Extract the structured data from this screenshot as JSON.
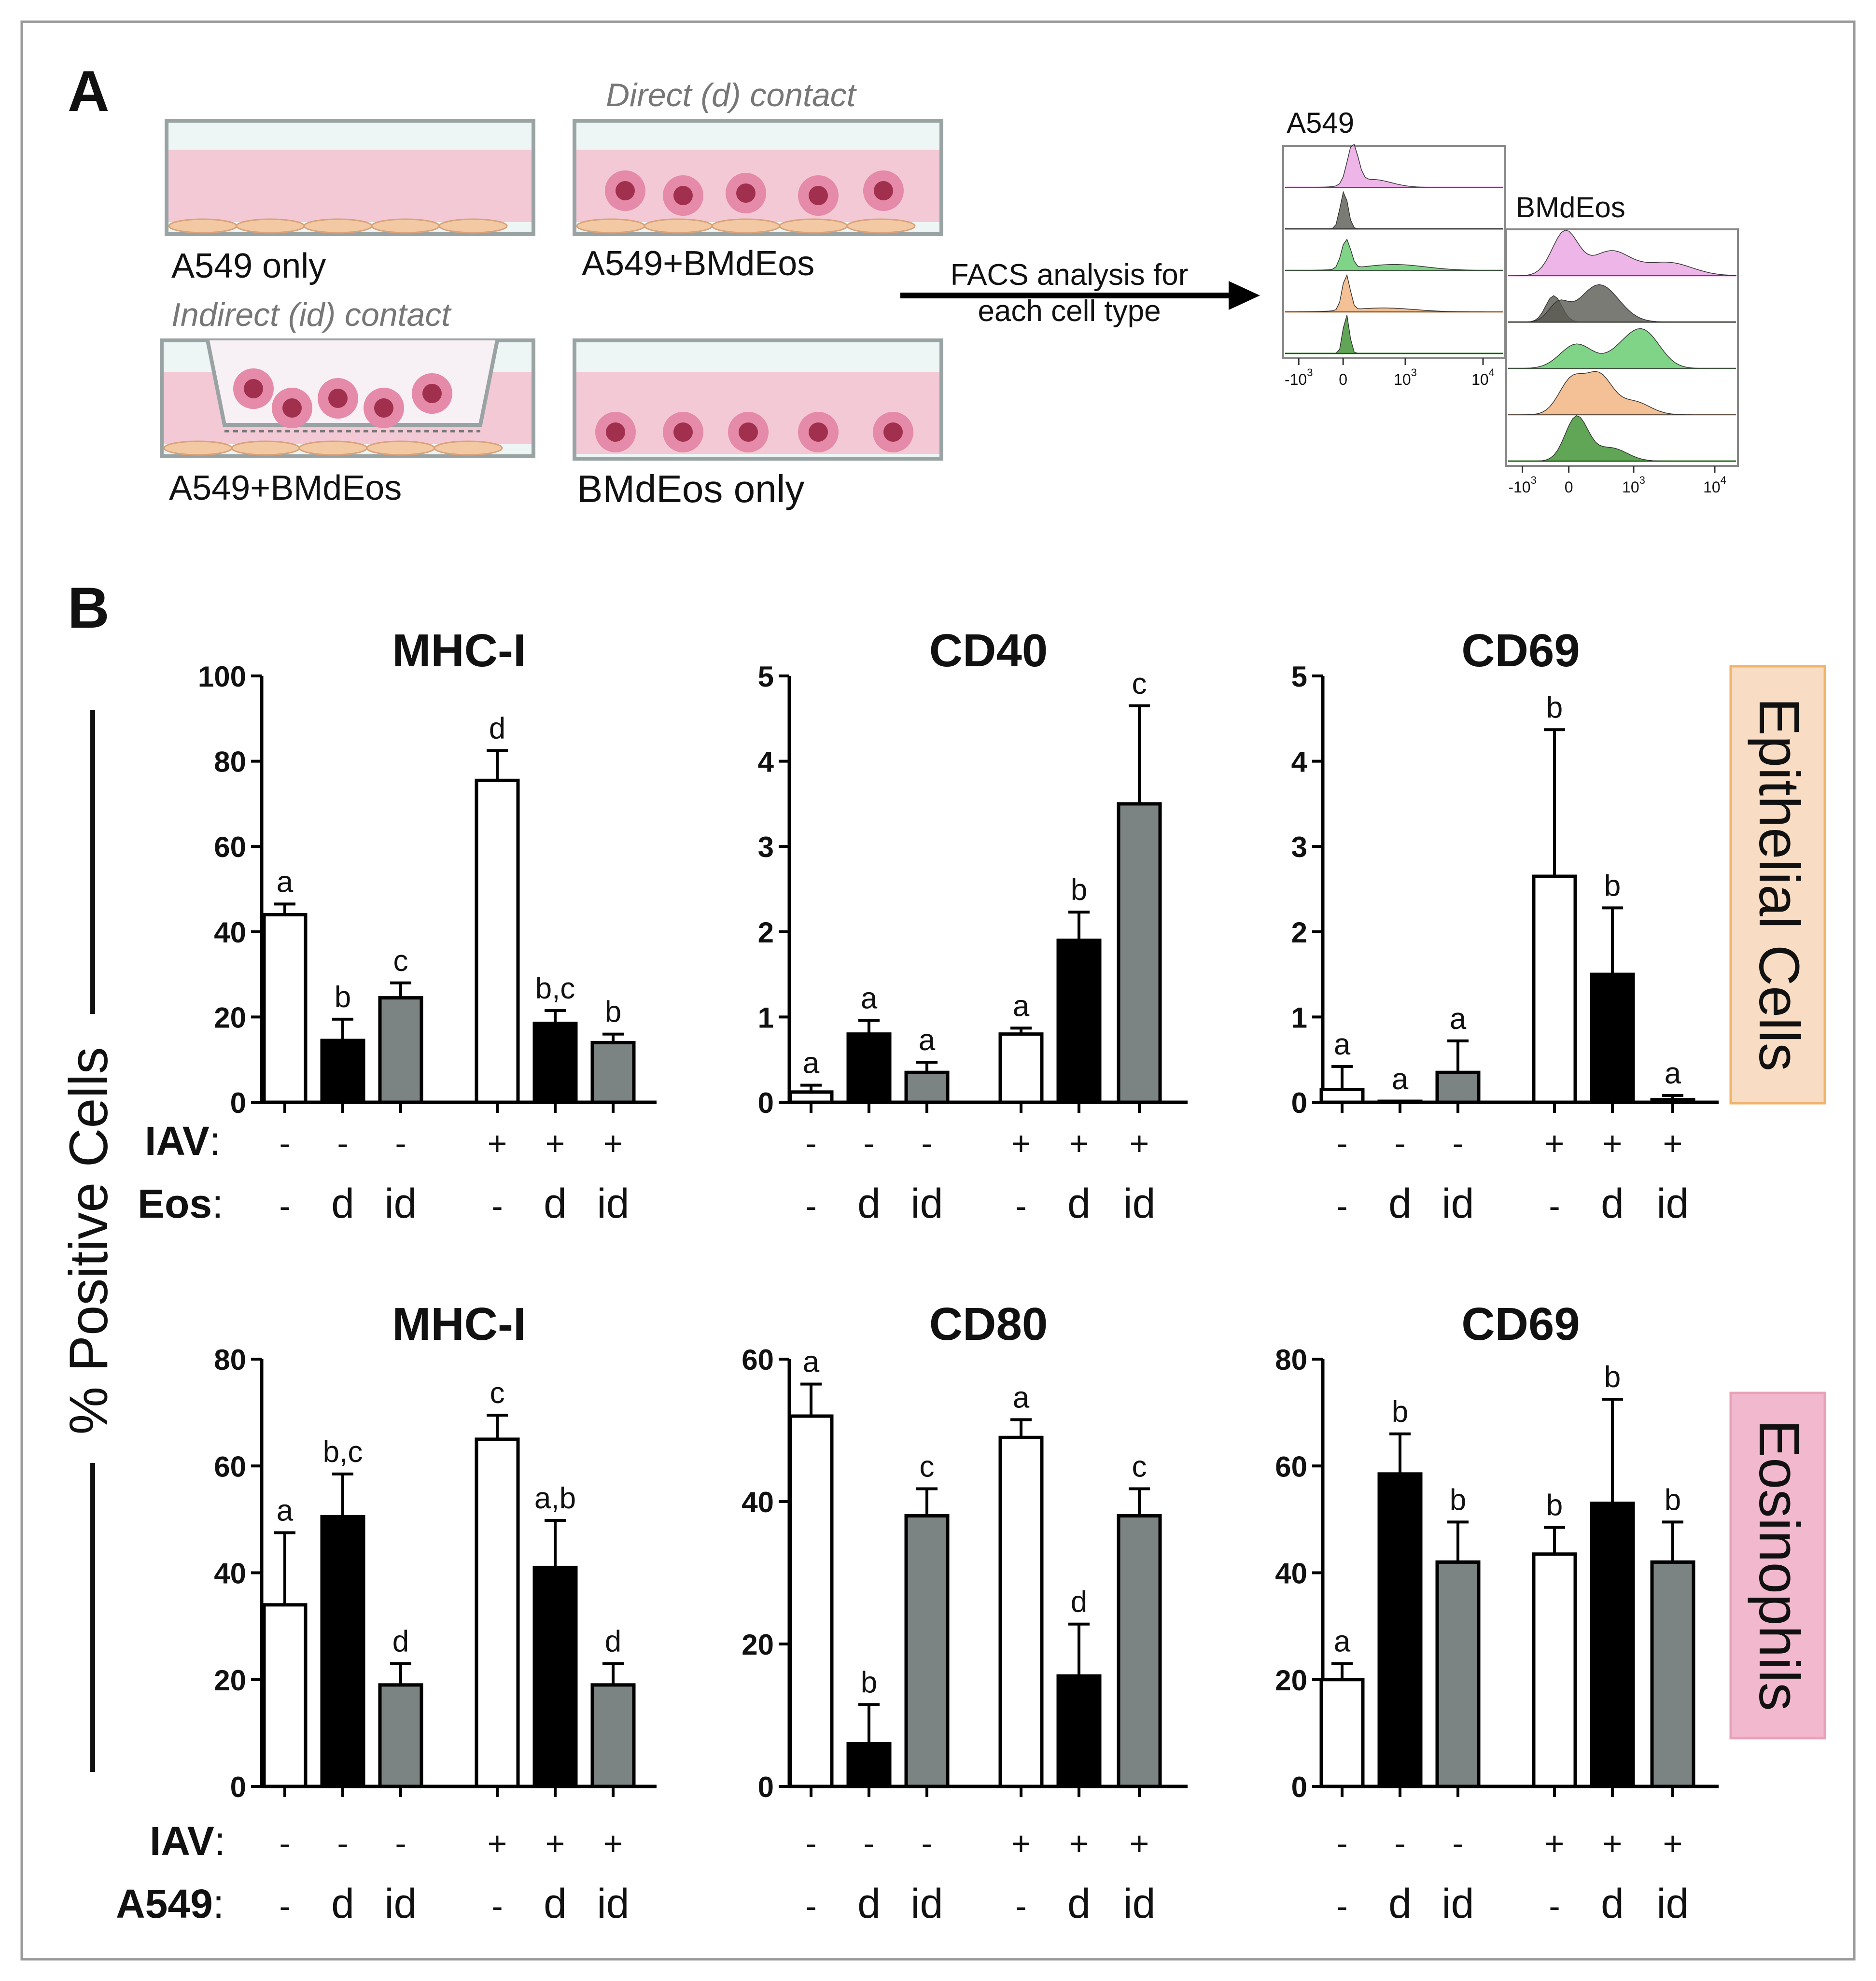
{
  "panel_a": {
    "label": "A",
    "wells": {
      "a549_only": "A549 only",
      "direct_header": "Direct (d) contact",
      "direct_label": "A549+BMdEos",
      "indirect_header": "Indirect (id) contact",
      "indirect_label": "A549+BMdEos",
      "eos_only": "BMdEos only"
    },
    "arrow_text": [
      "FACS analysis for",
      "each cell type"
    ],
    "histograms": {
      "a549": {
        "title": "A549",
        "ticks": [
          "-10",
          "0",
          "10",
          "10"
        ],
        "tick_exps": [
          "3",
          "",
          "3",
          "4"
        ]
      },
      "eos": {
        "title": "BMdEos",
        "ticks": [
          "-10",
          "0",
          "10",
          "10"
        ],
        "tick_exps": [
          "3",
          "",
          "3",
          "4"
        ]
      }
    },
    "colors": {
      "well_border": "#9aa3a3",
      "medium": "#f3c9d6",
      "cells": "#f2c9a2",
      "eos_cell": "#e58aa8",
      "eos_nucleus": "#a0304e",
      "pink": "#e8a2e2",
      "dark": "#5a5a52",
      "green": "#5fc96a",
      "orange": "#f0b27a",
      "darkgreen": "#3a8f2c"
    }
  },
  "panel_b": {
    "label": "B",
    "ylabel": "% Positive Cells",
    "row_labels": [
      "Epithelial Cells",
      "Eosinophils"
    ],
    "row_label_colors": [
      "#f8dcc4",
      "#f2b8cd"
    ],
    "row_label_borders": [
      "#f1b36a",
      "#e8a2b8"
    ],
    "treat_rows": [
      {
        "row_title": "IAV",
        "colon": ":",
        "values": [
          "-",
          "-",
          "-",
          "+",
          "+",
          "+"
        ]
      },
      {
        "row_title": "Eos",
        "colon": ":",
        "values": [
          "-",
          "d",
          "id",
          "-",
          "d",
          "id"
        ]
      },
      {
        "row_title": "IAV",
        "colon": ":",
        "values": [
          "-",
          "-",
          "-",
          "+",
          "+",
          "+"
        ]
      },
      {
        "row_title": "A549",
        "colon": ":",
        "values": [
          "-",
          "d",
          "id",
          "-",
          "d",
          "id"
        ]
      }
    ],
    "bar_colors": [
      "#ffffff",
      "#000000",
      "#7c8383"
    ]
  },
  "chart_data": [
    {
      "type": "bar",
      "title": "MHC-I",
      "row": "Epithelial Cells",
      "ylim": [
        0,
        100
      ],
      "ticks": [
        "0",
        "20",
        "40",
        "60",
        "80",
        "100"
      ],
      "values": [
        44,
        14.5,
        24.5,
        75.5,
        18.5,
        14
      ],
      "errors": [
        2.5,
        5,
        3.5,
        7,
        3,
        2
      ],
      "letters": [
        "a",
        "b",
        "c",
        "d",
        "b,c",
        "b"
      ]
    },
    {
      "type": "bar",
      "title": "CD40",
      "row": "Epithelial Cells",
      "ylim": [
        0,
        5
      ],
      "ticks": [
        "0",
        "1",
        "2",
        "3",
        "4",
        "5"
      ],
      "values": [
        0.12,
        0.8,
        0.35,
        0.8,
        1.9,
        3.5
      ],
      "errors": [
        0.08,
        0.16,
        0.12,
        0.07,
        0.33,
        1.15
      ],
      "letters": [
        "a",
        "a",
        "a",
        "a",
        "b",
        "c"
      ]
    },
    {
      "type": "bar",
      "title": "CD69",
      "row": "Epithelial Cells",
      "ylim": [
        0,
        5
      ],
      "ticks": [
        "0",
        "1",
        "2",
        "3",
        "4",
        "5"
      ],
      "values": [
        0.15,
        0.01,
        0.35,
        2.65,
        1.5,
        0.03
      ],
      "errors": [
        0.27,
        0,
        0.37,
        1.72,
        0.78,
        0.05
      ],
      "letters": [
        "a",
        "a",
        "a",
        "b",
        "b",
        "a"
      ]
    },
    {
      "type": "bar",
      "title": "MHC-I",
      "row": "Eosinophils",
      "ylim": [
        0,
        80
      ],
      "ticks": [
        "0",
        "20",
        "40",
        "60",
        "80"
      ],
      "values": [
        34,
        50.5,
        19,
        65,
        41,
        19
      ],
      "errors": [
        13.5,
        8,
        4,
        4.5,
        8.8,
        4
      ],
      "letters": [
        "a",
        "b,c",
        "d",
        "c",
        "a,b",
        "d"
      ]
    },
    {
      "type": "bar",
      "title": "CD80",
      "row": "Eosinophils",
      "ylim": [
        0,
        60
      ],
      "ticks": [
        "0",
        "20",
        "40",
        "60"
      ],
      "values": [
        52,
        6,
        38,
        49,
        15.5,
        38
      ],
      "errors": [
        4.5,
        5.5,
        3.8,
        2.5,
        7.3,
        3.8
      ],
      "letters": [
        "a",
        "b",
        "c",
        "a",
        "d",
        "c"
      ]
    },
    {
      "type": "bar",
      "title": "CD69",
      "row": "Eosinophils",
      "ylim": [
        0,
        80
      ],
      "ticks": [
        "0",
        "20",
        "40",
        "60",
        "80"
      ],
      "values": [
        20,
        58.5,
        42,
        43.5,
        53,
        42
      ],
      "errors": [
        3,
        7.5,
        7.5,
        5,
        19.5,
        7.5
      ],
      "letters": [
        "a",
        "b",
        "b",
        "b",
        "b",
        "b"
      ]
    }
  ]
}
